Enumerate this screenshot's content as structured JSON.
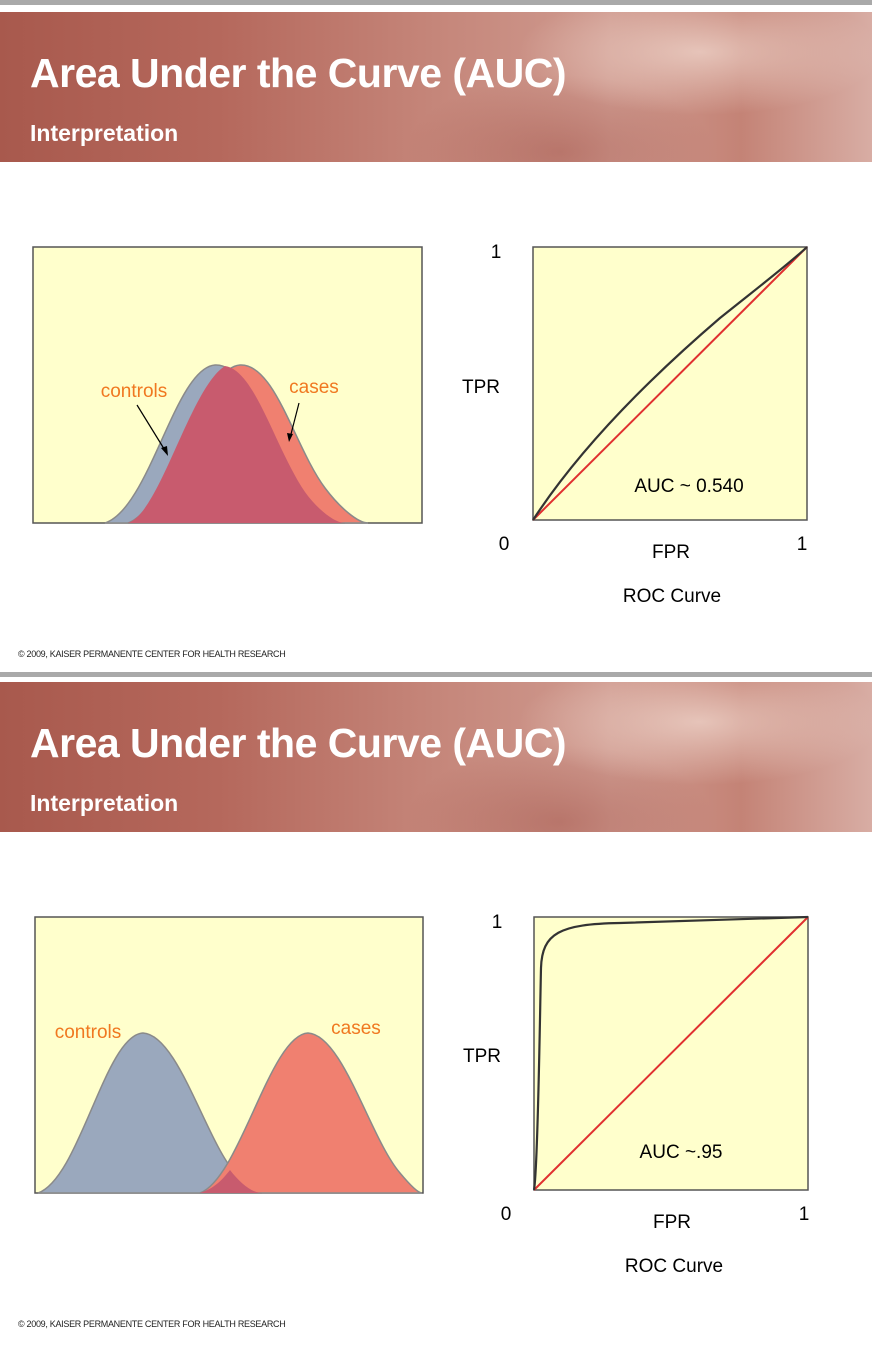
{
  "copyright": "© 2009, KAISER PERMANENTE CENTER FOR HEALTH RESEARCH",
  "colors": {
    "panel_fill": "#ffffcc",
    "controls_fill": "#9aa8bd",
    "cases_fill": "#f08070",
    "overlap_fill": "#c85b6e",
    "diagonal": "#e03030",
    "roc_curve": "#333333",
    "label_orange": "#f07820"
  },
  "slides": [
    {
      "title": "Area Under the Curve (AUC)",
      "subtitle": "Interpretation",
      "distributions": {
        "controls_label": "controls",
        "cases_label": "cases"
      },
      "roc": {
        "y_max_label": "1",
        "origin_label": "0",
        "x_max_label": "1",
        "ylabel": "TPR",
        "xlabel": "FPR",
        "caption": "ROC Curve",
        "auc_label": "AUC ~ 0.540"
      }
    },
    {
      "title": "Area Under the Curve (AUC)",
      "subtitle": "Interpretation",
      "distributions": {
        "controls_label": "controls",
        "cases_label": "cases"
      },
      "roc": {
        "y_max_label": "1",
        "origin_label": "0",
        "x_max_label": "1",
        "ylabel": "TPR",
        "xlabel": "FPR",
        "caption": "ROC Curve",
        "auc_label": "AUC ~.95"
      }
    }
  ]
}
